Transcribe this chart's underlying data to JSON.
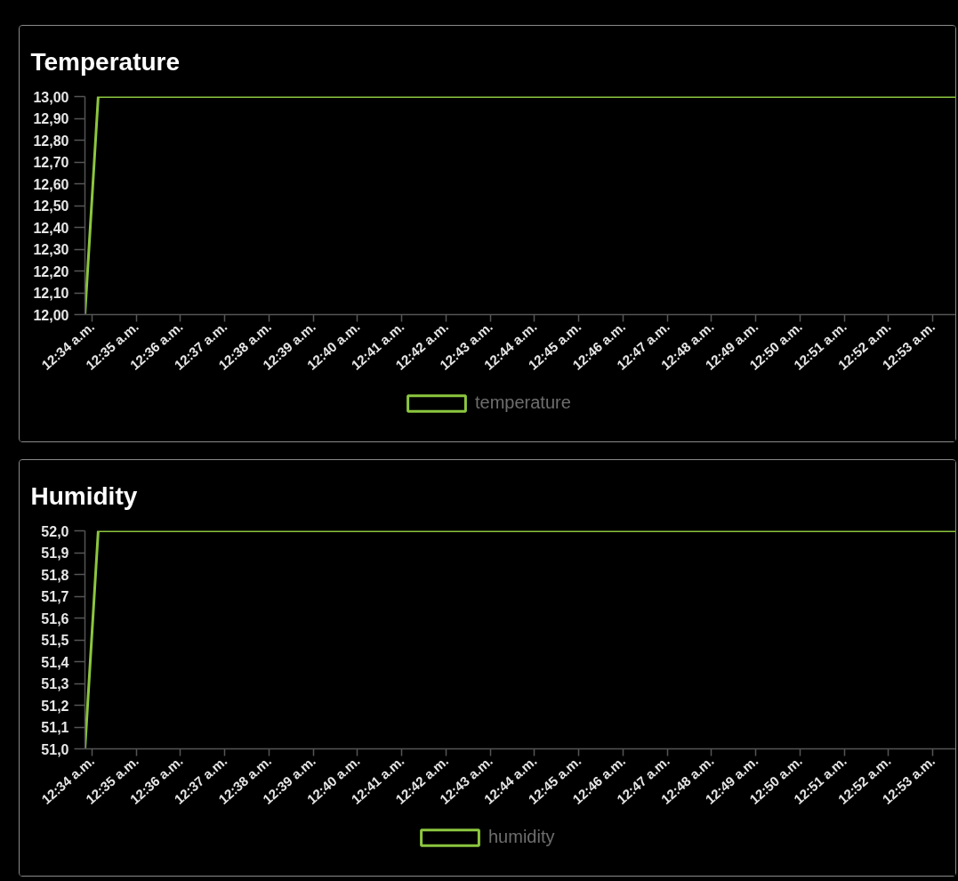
{
  "chart_data": [
    {
      "type": "line",
      "title": "Temperature",
      "x": [
        0.564,
        0.569,
        0.892
      ],
      "series": [
        {
          "name": "temperature",
          "color": "#8cc63f",
          "values": [
            12.0,
            13.0,
            13.0
          ]
        }
      ],
      "xlim": [
        0.564,
        0.892
      ],
      "xticks": [
        {
          "value": 0.56667,
          "label": "12:34 a.m."
        },
        {
          "value": 0.58333,
          "label": "12:35 a.m."
        },
        {
          "value": 0.6,
          "label": "12:36 a.m."
        },
        {
          "value": 0.61667,
          "label": "12:37 a.m."
        },
        {
          "value": 0.63333,
          "label": "12:38 a.m."
        },
        {
          "value": 0.65,
          "label": "12:39 a.m."
        },
        {
          "value": 0.66667,
          "label": "12:40 a.m."
        },
        {
          "value": 0.68333,
          "label": "12:41 a.m."
        },
        {
          "value": 0.7,
          "label": "12:42 a.m."
        },
        {
          "value": 0.71667,
          "label": "12:43 a.m."
        },
        {
          "value": 0.73333,
          "label": "12:44 a.m."
        },
        {
          "value": 0.75,
          "label": "12:45 a.m."
        },
        {
          "value": 0.76667,
          "label": "12:46 a.m."
        },
        {
          "value": 0.78333,
          "label": "12:47 a.m."
        },
        {
          "value": 0.8,
          "label": "12:48 a.m."
        },
        {
          "value": 0.81667,
          "label": "12:49 a.m."
        },
        {
          "value": 0.83333,
          "label": "12:50 a.m."
        },
        {
          "value": 0.85,
          "label": "12:51 a.m."
        },
        {
          "value": 0.86667,
          "label": "12:52 a.m."
        },
        {
          "value": 0.88333,
          "label": "12:53 a.m."
        }
      ],
      "ylim": [
        12.0,
        13.0
      ],
      "yticks": [
        {
          "value": 12.0,
          "label": "12,00"
        },
        {
          "value": 12.1,
          "label": "12,10"
        },
        {
          "value": 12.2,
          "label": "12,20"
        },
        {
          "value": 12.3,
          "label": "12,30"
        },
        {
          "value": 12.4,
          "label": "12,40"
        },
        {
          "value": 12.5,
          "label": "12,50"
        },
        {
          "value": 12.6,
          "label": "12,60"
        },
        {
          "value": 12.7,
          "label": "12,70"
        },
        {
          "value": 12.8,
          "label": "12,80"
        },
        {
          "value": 12.9,
          "label": "12,90"
        },
        {
          "value": 13.0,
          "label": "13,00"
        }
      ],
      "legend": "bottom",
      "line_style": "solid"
    },
    {
      "type": "line",
      "title": "Humidity",
      "x": [
        0.564,
        0.569,
        0.892
      ],
      "series": [
        {
          "name": "humidity",
          "color": "#8cc63f",
          "values": [
            51.0,
            52.0,
            52.0
          ]
        }
      ],
      "xlim": [
        0.564,
        0.892
      ],
      "xticks": [
        {
          "value": 0.56667,
          "label": "12:34 a.m."
        },
        {
          "value": 0.58333,
          "label": "12:35 a.m."
        },
        {
          "value": 0.6,
          "label": "12:36 a.m."
        },
        {
          "value": 0.61667,
          "label": "12:37 a.m."
        },
        {
          "value": 0.63333,
          "label": "12:38 a.m."
        },
        {
          "value": 0.65,
          "label": "12:39 a.m."
        },
        {
          "value": 0.66667,
          "label": "12:40 a.m."
        },
        {
          "value": 0.68333,
          "label": "12:41 a.m."
        },
        {
          "value": 0.7,
          "label": "12:42 a.m."
        },
        {
          "value": 0.71667,
          "label": "12:43 a.m."
        },
        {
          "value": 0.73333,
          "label": "12:44 a.m."
        },
        {
          "value": 0.75,
          "label": "12:45 a.m."
        },
        {
          "value": 0.76667,
          "label": "12:46 a.m."
        },
        {
          "value": 0.78333,
          "label": "12:47 a.m."
        },
        {
          "value": 0.8,
          "label": "12:48 a.m."
        },
        {
          "value": 0.81667,
          "label": "12:49 a.m."
        },
        {
          "value": 0.83333,
          "label": "12:50 a.m."
        },
        {
          "value": 0.85,
          "label": "12:51 a.m."
        },
        {
          "value": 0.86667,
          "label": "12:52 a.m."
        },
        {
          "value": 0.88333,
          "label": "12:53 a.m."
        }
      ],
      "ylim": [
        51.0,
        52.0
      ],
      "yticks": [
        {
          "value": 51.0,
          "label": "51,0"
        },
        {
          "value": 51.1,
          "label": "51,1"
        },
        {
          "value": 51.2,
          "label": "51,2"
        },
        {
          "value": 51.3,
          "label": "51,3"
        },
        {
          "value": 51.4,
          "label": "51,4"
        },
        {
          "value": 51.5,
          "label": "51,5"
        },
        {
          "value": 51.6,
          "label": "51,6"
        },
        {
          "value": 51.7,
          "label": "51,7"
        },
        {
          "value": 51.8,
          "label": "51,8"
        },
        {
          "value": 51.9,
          "label": "51,9"
        },
        {
          "value": 52.0,
          "label": "52,0"
        }
      ],
      "legend": "bottom",
      "line_style": "solid"
    }
  ]
}
